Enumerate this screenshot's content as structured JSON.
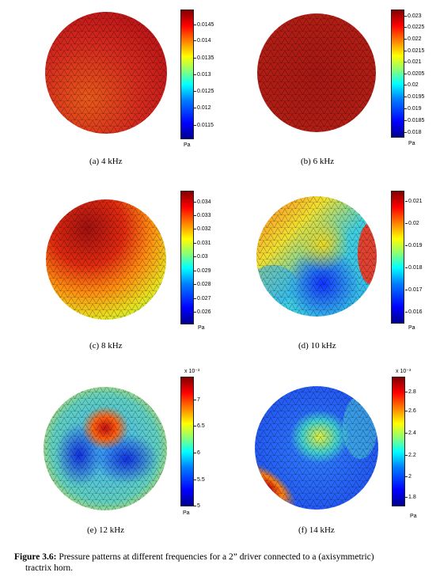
{
  "panels": [
    {
      "caption": "(a)  4 kHz",
      "unit": "Pa",
      "multiplier": "",
      "ticks": [
        "0.0145",
        "0.014",
        "0.0135",
        "0.013",
        "0.0125",
        "0.012",
        "0.0115"
      ],
      "pattern": {
        "base": "#d0281e",
        "spots": []
      }
    },
    {
      "caption": "(b)  6 kHz",
      "unit": "Pa",
      "multiplier": "",
      "ticks": [
        "0.023",
        "0.0225",
        "0.022",
        "0.0215",
        "0.021",
        "0.0205",
        "0.02",
        "0.0195",
        "0.019",
        "0.0185",
        "0.018"
      ],
      "pattern": {
        "base": "#a81a12",
        "spots": []
      }
    },
    {
      "caption": "(c)  8 kHz",
      "unit": "Pa",
      "multiplier": "",
      "ticks": [
        "0.034",
        "0.033",
        "0.032",
        "0.031",
        "0.03",
        "0.029",
        "0.028",
        "0.027",
        "0.026"
      ],
      "pattern": {
        "base": "#ff6a10",
        "spots": [
          {
            "c": "#a01010"
          },
          {
            "c": "#e8e020"
          }
        ]
      }
    },
    {
      "caption": "(d)  10 kHz",
      "unit": "Pa",
      "multiplier": "",
      "ticks": [
        "0.021",
        "0.02",
        "0.019",
        "0.018",
        "0.017",
        "0.016"
      ],
      "pattern": {
        "base": "#40c8e0",
        "spots": [
          {
            "c": "#ff3010"
          },
          {
            "c": "#1040ff"
          },
          {
            "c": "#f0e020"
          }
        ]
      }
    },
    {
      "caption": "(e)  12 kHz",
      "unit": "Pa",
      "multiplier": "x 10⁻³",
      "ticks": [
        "7",
        "6.5",
        "6",
        "5.5",
        "5"
      ],
      "pattern": {
        "base": "#30a0ff",
        "spots": [
          {
            "c": "#e02010"
          },
          {
            "c": "#1030f0"
          },
          {
            "c": "#f0f040"
          }
        ]
      }
    },
    {
      "caption": "(f)  14 kHz",
      "unit": "Pa",
      "multiplier": "x 10⁻³",
      "ticks": [
        "2.8",
        "2.6",
        "2.4",
        "2.2",
        "2",
        "1.8"
      ],
      "pattern": {
        "base": "#2060ff",
        "spots": [
          {
            "c": "#f0e020"
          },
          {
            "c": "#e02010"
          }
        ]
      }
    }
  ],
  "figure_caption": {
    "label": "Figure 3.6:",
    "text_line1": " Pressure patterns at different frequencies for a 2” driver connected to a (axisymmetric)",
    "text_line2": "tractrix horn."
  }
}
